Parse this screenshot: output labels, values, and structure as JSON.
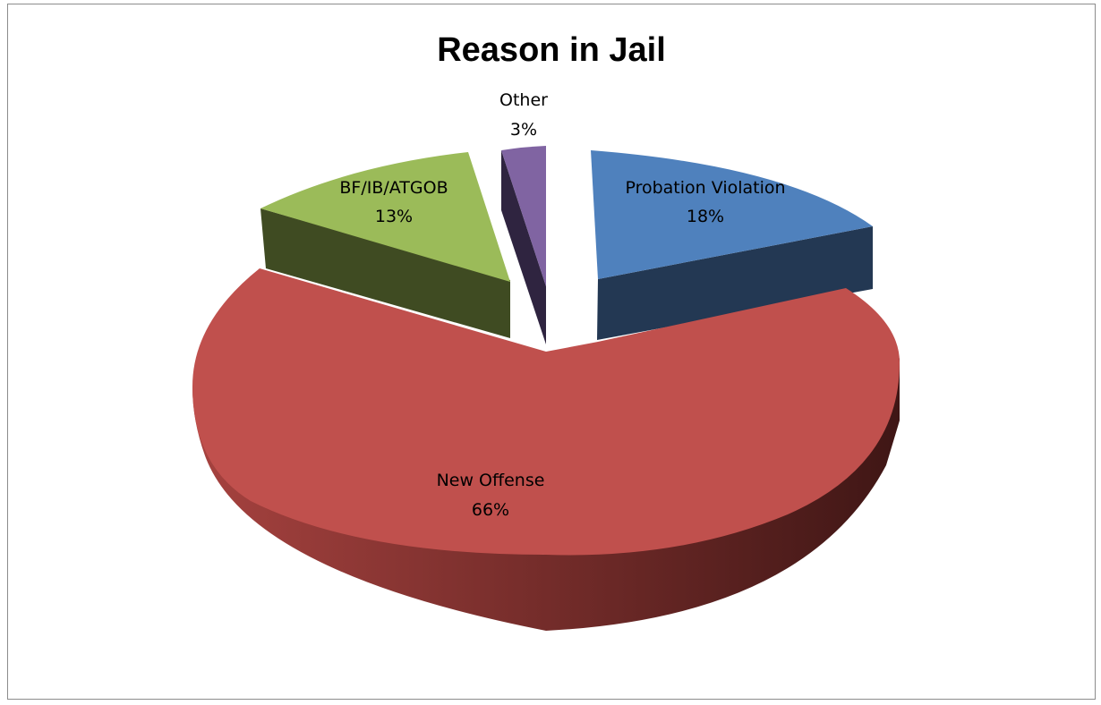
{
  "chart_data": {
    "type": "pie",
    "title": "Reason in Jail",
    "slices": [
      {
        "label": "Probation Violation",
        "percent_label": "18%",
        "value": 18,
        "color": "#4f81bd",
        "dark": "#233853"
      },
      {
        "label": "New Offense",
        "percent_label": "66%",
        "value": 66,
        "color": "#c0504d",
        "dark": "#5a2220"
      },
      {
        "label": "BF/IB/ATGOB",
        "percent_label": "13%",
        "value": 13,
        "color": "#9bbb59",
        "dark": "#3f4b22"
      },
      {
        "label": "Other",
        "percent_label": "3%",
        "value": 3,
        "color": "#8064a2",
        "dark": "#2f2440"
      }
    ],
    "legend": "none",
    "style": "3d-exploded-pie"
  }
}
